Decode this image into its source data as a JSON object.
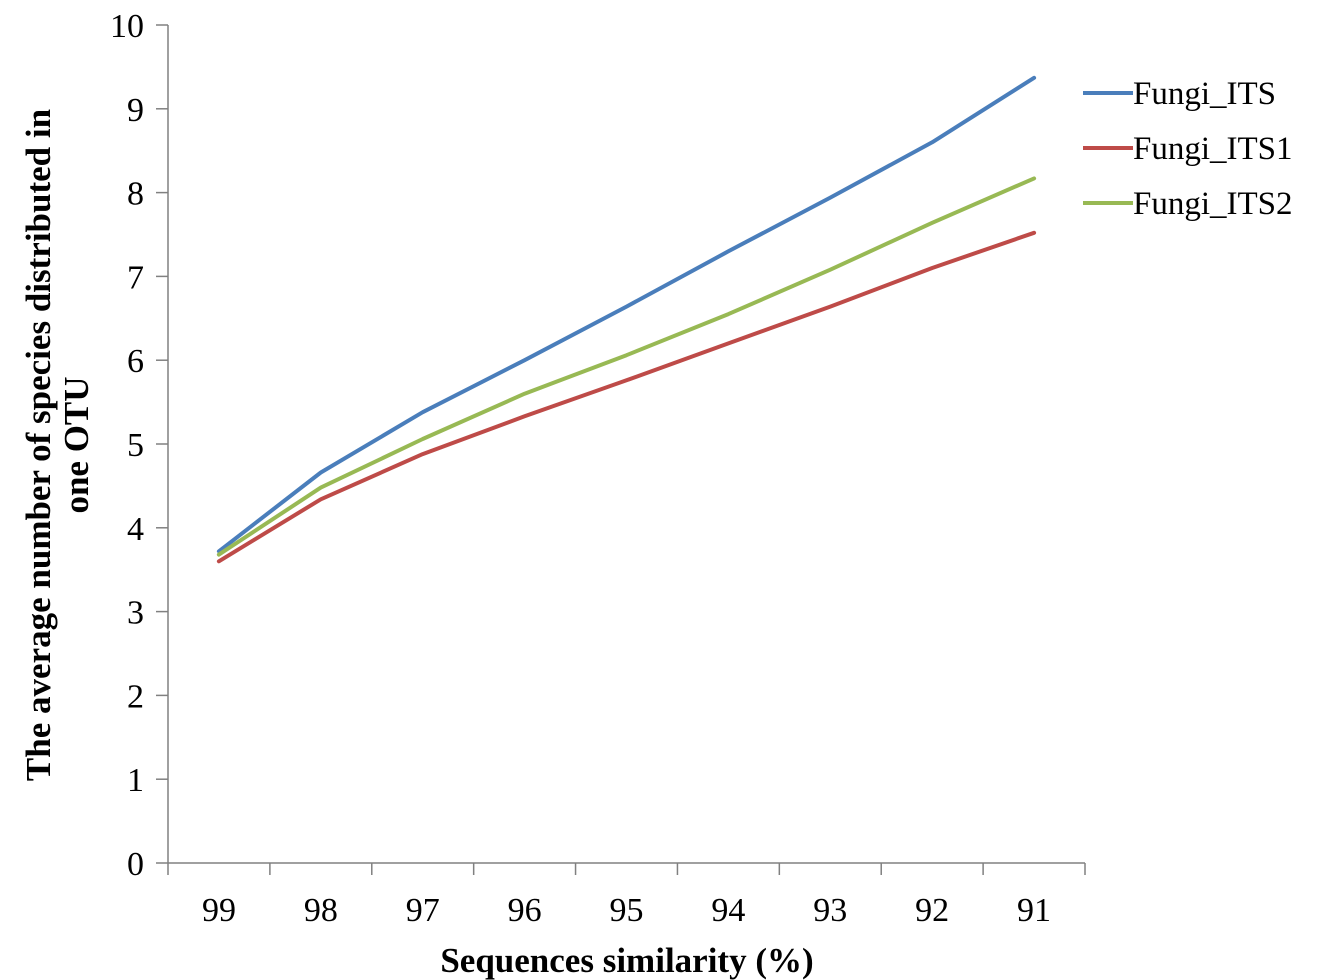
{
  "chart_data": {
    "type": "line",
    "title": "",
    "xlabel": "Sequences similarity (%)",
    "ylabel_lines": [
      "The average number of species distributed in",
      "one OTU"
    ],
    "categories": [
      "99",
      "98",
      "97",
      "96",
      "95",
      "94",
      "93",
      "92",
      "91"
    ],
    "ylim": [
      0,
      10
    ],
    "yticks": [
      "0",
      "1",
      "2",
      "3",
      "4",
      "5",
      "6",
      "7",
      "8",
      "9",
      "10"
    ],
    "grid": false,
    "legend_position": "top-right",
    "series": [
      {
        "name": "Fungi_ITS",
        "color": "#4A7EBB",
        "values": [
          3.72,
          4.66,
          5.38,
          6.0,
          6.64,
          7.3,
          7.94,
          8.6,
          9.37
        ]
      },
      {
        "name": "Fungi_ITS1",
        "color": "#BE4B48",
        "values": [
          3.6,
          4.34,
          4.88,
          5.33,
          5.76,
          6.2,
          6.64,
          7.1,
          7.52
        ]
      },
      {
        "name": "Fungi_ITS2",
        "color": "#98B954",
        "values": [
          3.68,
          4.48,
          5.06,
          5.6,
          6.06,
          6.55,
          7.08,
          7.64,
          8.17
        ]
      }
    ]
  }
}
